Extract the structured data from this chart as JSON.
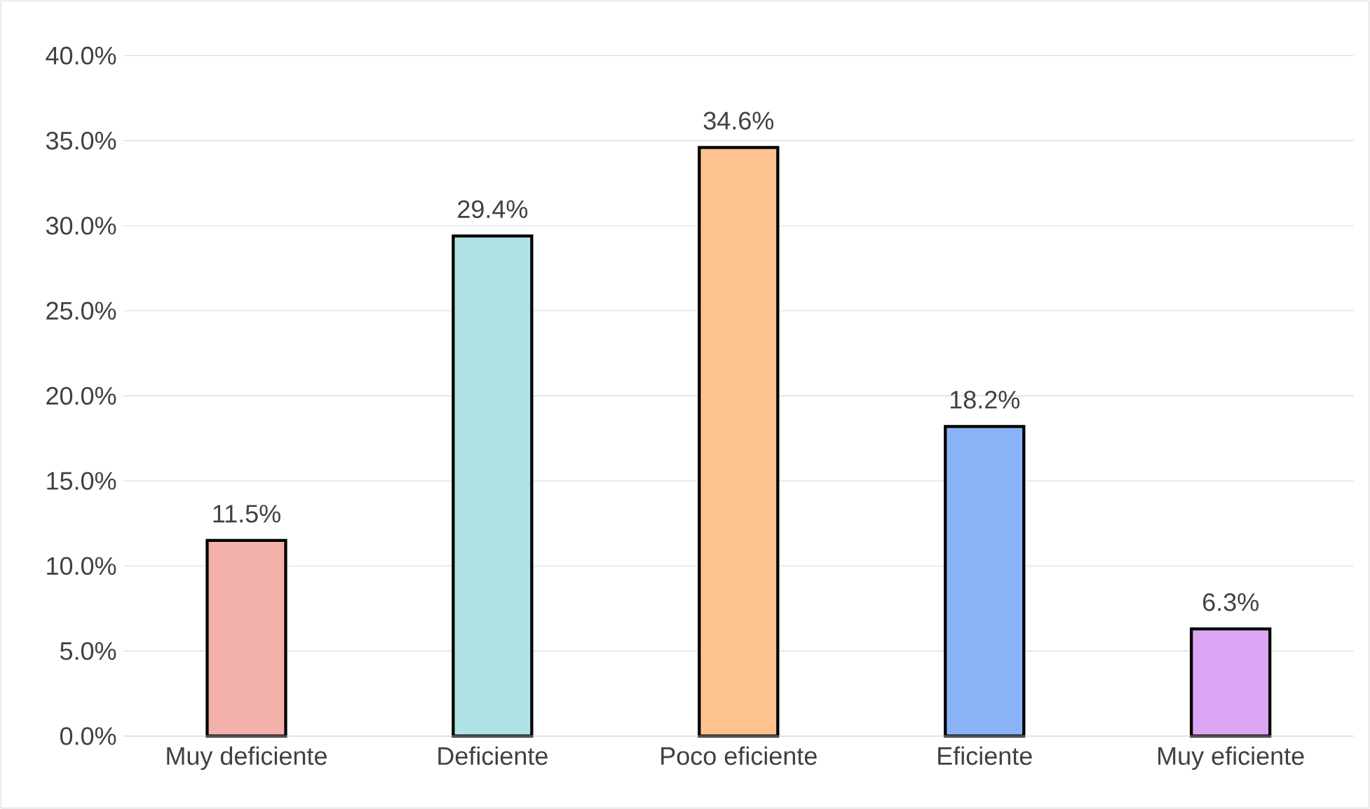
{
  "chart_data": {
    "type": "bar",
    "categories": [
      "Muy deficiente",
      "Deficiente",
      "Poco eficiente",
      "Eficiente",
      "Muy eficiente"
    ],
    "values": [
      11.5,
      29.4,
      34.6,
      18.2,
      6.3
    ],
    "value_labels": [
      "11.5%",
      "29.4%",
      "34.6%",
      "18.2%",
      "6.3%"
    ],
    "colors": [
      "#f4b0aa",
      "#b0e3e6",
      "#fec28f",
      "#8ab4f8",
      "#dda6f5"
    ],
    "ylim": [
      0,
      40
    ],
    "yticks": [
      {
        "value": 0,
        "label": "0.0%"
      },
      {
        "value": 5,
        "label": "5.0%"
      },
      {
        "value": 10,
        "label": "10.0%"
      },
      {
        "value": 15,
        "label": "15.0%"
      },
      {
        "value": 20,
        "label": "20.0%"
      },
      {
        "value": 25,
        "label": "25.0%"
      },
      {
        "value": 30,
        "label": "30.0%"
      },
      {
        "value": 35,
        "label": "35.0%"
      },
      {
        "value": 40,
        "label": "40.0%"
      }
    ],
    "grid": "y"
  }
}
